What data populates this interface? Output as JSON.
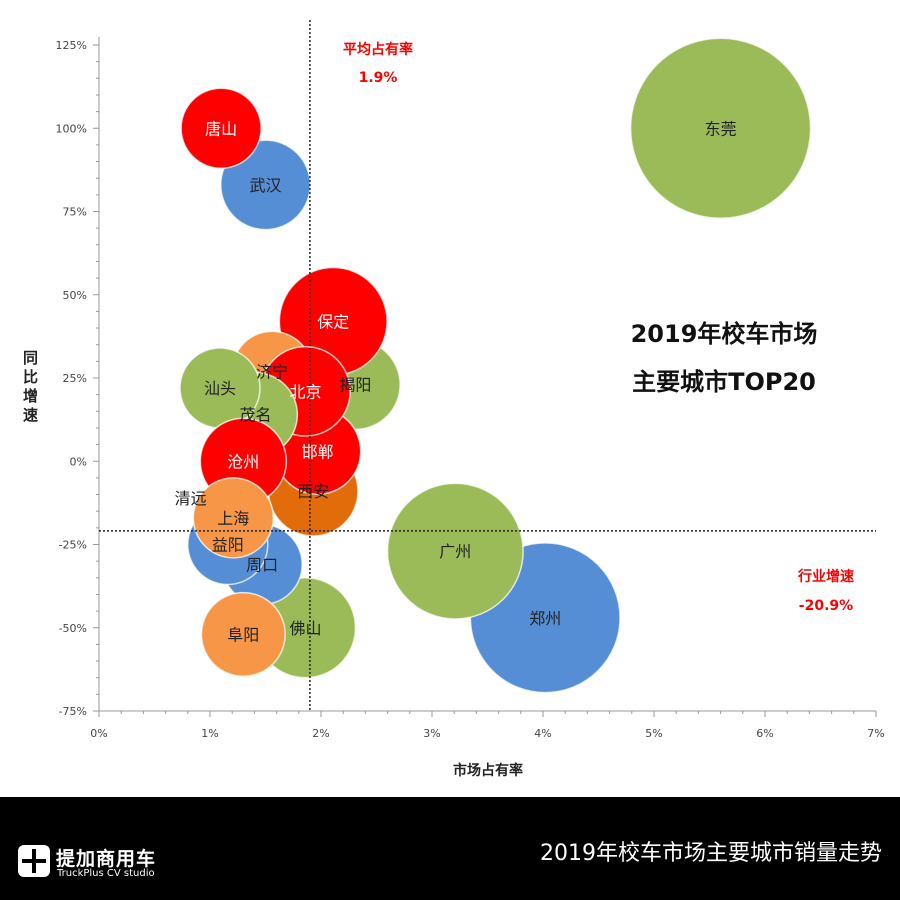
{
  "chart_data": {
    "type": "bubble",
    "title_lines": [
      "2019年校车市场",
      "主要城市TOP20"
    ],
    "xlabel": "市场占有率",
    "ylabel": "同比增速",
    "xlim": [
      0,
      7
    ],
    "ylim": [
      -75,
      125
    ],
    "x_ticks": [
      0,
      1,
      2,
      3,
      4,
      5,
      6,
      7
    ],
    "x_tick_labels": [
      "0%",
      "1%",
      "2%",
      "3%",
      "4%",
      "5%",
      "6%",
      "7%"
    ],
    "y_ticks": [
      125,
      100,
      75,
      50,
      25,
      0,
      -25,
      -50,
      -75
    ],
    "y_tick_labels": [
      "125%",
      "100%",
      "75%",
      "50%",
      "25%",
      "0%",
      "-25%",
      "-50%",
      "-75%"
    ],
    "grid": false,
    "reference_lines": {
      "vertical": {
        "value": 1.9,
        "label": "平均占有率",
        "value_label": "1.9%"
      },
      "horizontal": {
        "value": -20.9,
        "label": "行业增速",
        "value_label": "-20.9%"
      }
    },
    "colors": {
      "red": "#FF0000",
      "blue": "#558ED5",
      "green": "#9BBB59",
      "orange": "#F79646",
      "dark_orange": "#E36C0A",
      "annotation": "#FF0000"
    },
    "points": [
      {
        "name": "东莞",
        "x": 5.6,
        "y": 100,
        "size": 81,
        "color": "green"
      },
      {
        "name": "郑州",
        "x": 4.02,
        "y": -47,
        "size": 56,
        "color": "blue"
      },
      {
        "name": "广州",
        "x": 3.21,
        "y": -27,
        "size": 46,
        "color": "green"
      },
      {
        "name": "揭阳",
        "x": 2.31,
        "y": 23,
        "size": 20,
        "color": "green"
      },
      {
        "name": "西安",
        "x": 1.93,
        "y": -9,
        "size": 20,
        "color": "dark_orange"
      },
      {
        "name": "邯郸",
        "x": 1.97,
        "y": 3,
        "size": 18.5,
        "color": "red"
      },
      {
        "name": "保定",
        "x": 2.11,
        "y": 42,
        "size": 29,
        "color": "red"
      },
      {
        "name": "济宁",
        "x": 1.56,
        "y": 27,
        "size": 16,
        "color": "orange"
      },
      {
        "name": "北京",
        "x": 1.86,
        "y": 21,
        "size": 20,
        "color": "red"
      },
      {
        "name": "茂名",
        "x": 1.41,
        "y": 14,
        "size": 17.5,
        "color": "green"
      },
      {
        "name": "汕头",
        "x": 1.09,
        "y": 22,
        "size": 16,
        "color": "green"
      },
      {
        "name": "沧州",
        "x": 1.3,
        "y": 0,
        "size": 18.5,
        "color": "red"
      },
      {
        "name": "佛山",
        "x": 1.86,
        "y": -50,
        "size": 25,
        "color": "green"
      },
      {
        "name": "周口",
        "x": 1.47,
        "y": -31,
        "size": 16,
        "color": "blue"
      },
      {
        "name": "益阳",
        "x": 1.16,
        "y": -25,
        "size": 16,
        "color": "blue"
      },
      {
        "name": "清远",
        "x": 1.15,
        "y": -11,
        "size": 1,
        "color": "green"
      },
      {
        "name": "上海",
        "x": 1.21,
        "y": -17,
        "size": 16,
        "color": "orange"
      },
      {
        "name": "阜阳",
        "x": 1.3,
        "y": -52,
        "size": 17.5,
        "color": "orange"
      },
      {
        "name": "武汉",
        "x": 1.5,
        "y": 83,
        "size": 20,
        "color": "blue"
      },
      {
        "name": "唐山",
        "x": 1.1,
        "y": 100,
        "size": 16,
        "color": "red"
      }
    ]
  },
  "footer": {
    "logo_cn": "提加商用车",
    "logo_en": "TruckPlus CV studio",
    "title": "2019年校车市场主要城市销量走势"
  }
}
